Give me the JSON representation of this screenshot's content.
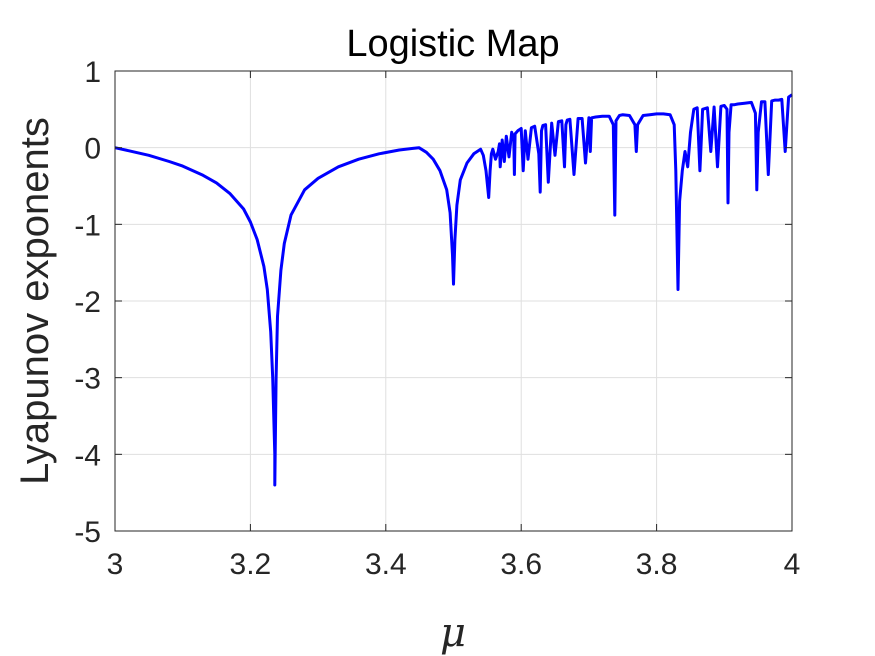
{
  "chart_data": {
    "type": "line",
    "title": "Logistic Map",
    "xlabel": "μ",
    "ylabel": "Lyapunov exponents",
    "xlim": [
      3,
      4
    ],
    "ylim": [
      -5,
      1
    ],
    "xticks": [
      3,
      3.2,
      3.4,
      3.6,
      3.8,
      4
    ],
    "xtick_labels": [
      "3",
      "3.2",
      "3.4",
      "3.6",
      "3.8",
      "4"
    ],
    "yticks": [
      -5,
      -4,
      -3,
      -2,
      -1,
      0,
      1
    ],
    "ytick_labels": [
      "-5",
      "-4",
      "-3",
      "-2",
      "-1",
      "0",
      "1"
    ],
    "grid": true,
    "legend": "none",
    "line_color": "#0000ff",
    "series": [
      {
        "x": [
          3.0,
          3.02,
          3.05,
          3.08,
          3.1,
          3.13,
          3.15,
          3.17,
          3.19,
          3.2,
          3.21,
          3.22,
          3.225,
          3.23,
          3.233,
          3.236,
          3.2361,
          3.238,
          3.24,
          3.245,
          3.25,
          3.26,
          3.28,
          3.3,
          3.33,
          3.36,
          3.39,
          3.42,
          3.44,
          3.449,
          3.46,
          3.47,
          3.48,
          3.49,
          3.495,
          3.4985,
          3.5,
          3.502,
          3.505,
          3.51,
          3.52,
          3.53,
          3.54,
          3.544,
          3.548,
          3.552,
          3.554,
          3.556,
          3.558,
          3.562,
          3.566,
          3.568,
          3.569,
          3.572,
          3.575,
          3.578,
          3.582,
          3.586,
          3.589,
          3.59,
          3.591,
          3.595,
          3.6,
          3.603,
          3.606,
          3.61,
          3.615,
          3.62,
          3.626,
          3.628,
          3.63,
          3.632,
          3.636,
          3.64,
          3.645,
          3.65,
          3.655,
          3.66,
          3.664,
          3.666,
          3.668,
          3.672,
          3.678,
          3.684,
          3.69,
          3.695,
          3.7,
          3.702,
          3.704,
          3.71,
          3.72,
          3.73,
          3.736,
          3.7382,
          3.74,
          3.745,
          3.75,
          3.76,
          3.768,
          3.77,
          3.772,
          3.78,
          3.79,
          3.8,
          3.81,
          3.82,
          3.826,
          3.8284,
          3.8316,
          3.834,
          3.838,
          3.842,
          3.846,
          3.85,
          3.855,
          3.86,
          3.864,
          3.866,
          3.868,
          3.875,
          3.88,
          3.885,
          3.89,
          3.895,
          3.9,
          3.904,
          3.9055,
          3.907,
          3.91,
          3.915,
          3.92,
          3.93,
          3.94,
          3.946,
          3.948,
          3.95,
          3.955,
          3.96,
          3.965,
          3.97,
          3.975,
          3.98,
          3.985,
          3.99,
          3.995,
          4.0
        ],
        "y": [
          0.0,
          -0.04,
          -0.1,
          -0.18,
          -0.24,
          -0.36,
          -0.46,
          -0.6,
          -0.8,
          -0.97,
          -1.2,
          -1.55,
          -1.85,
          -2.4,
          -3.0,
          -4.0,
          -4.4,
          -3.0,
          -2.2,
          -1.6,
          -1.25,
          -0.88,
          -0.55,
          -0.4,
          -0.25,
          -0.15,
          -0.08,
          -0.03,
          -0.01,
          0.0,
          -0.06,
          -0.15,
          -0.3,
          -0.55,
          -0.85,
          -1.4,
          -1.78,
          -1.2,
          -0.75,
          -0.42,
          -0.2,
          -0.08,
          -0.02,
          -0.1,
          -0.3,
          -0.65,
          -0.3,
          -0.08,
          -0.02,
          -0.15,
          -0.05,
          0.05,
          -0.25,
          0.1,
          -0.18,
          0.15,
          -0.12,
          0.2,
          0.1,
          -0.35,
          0.18,
          0.22,
          0.25,
          -0.3,
          0.22,
          -0.15,
          0.26,
          0.28,
          -0.08,
          -0.58,
          0.22,
          0.29,
          0.3,
          -0.45,
          0.32,
          -0.1,
          0.34,
          0.35,
          -0.25,
          0.3,
          0.36,
          0.37,
          -0.35,
          0.38,
          0.38,
          -0.2,
          0.39,
          -0.05,
          0.39,
          0.4,
          0.41,
          0.41,
          0.3,
          -0.88,
          0.35,
          0.42,
          0.43,
          0.42,
          0.3,
          -0.05,
          0.3,
          0.42,
          0.43,
          0.44,
          0.44,
          0.43,
          0.3,
          -0.3,
          -1.85,
          -0.7,
          -0.3,
          -0.05,
          -0.25,
          0.2,
          0.5,
          0.52,
          -0.3,
          0.1,
          0.5,
          0.52,
          -0.05,
          0.53,
          -0.25,
          0.54,
          0.55,
          0.5,
          -0.72,
          0.2,
          0.56,
          0.56,
          0.57,
          0.58,
          0.59,
          0.45,
          -0.55,
          0.2,
          0.6,
          0.6,
          -0.35,
          0.61,
          0.62,
          0.62,
          0.63,
          -0.05,
          0.66,
          0.69
        ]
      }
    ]
  }
}
